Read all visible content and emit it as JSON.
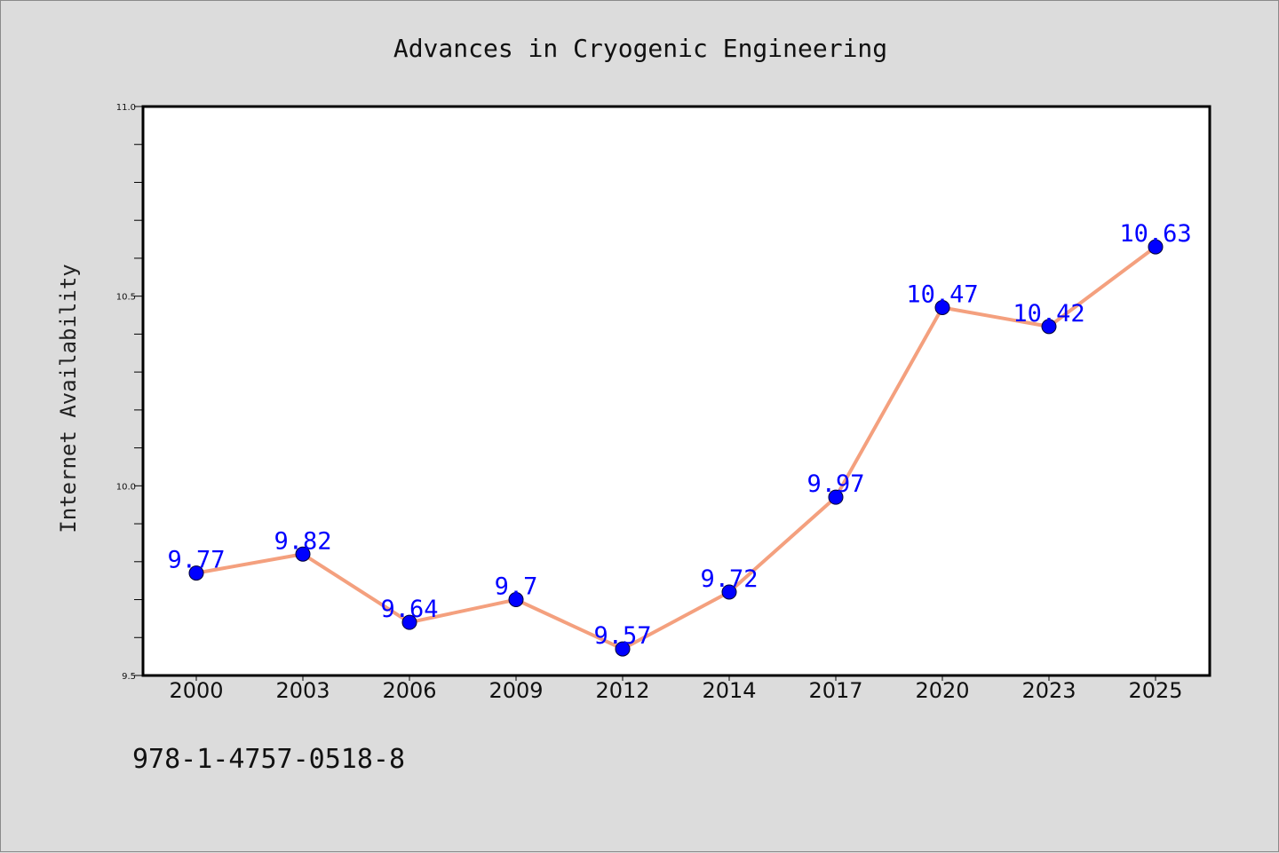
{
  "chart_data": {
    "type": "line",
    "title": "Advances in Cryogenic Engineering",
    "ylabel": "Internet Availability",
    "xlabel": "",
    "categories": [
      "2000",
      "2003",
      "2006",
      "2009",
      "2012",
      "2014",
      "2017",
      "2020",
      "2023",
      "2025"
    ],
    "series": [
      {
        "values": [
          9.77,
          9.82,
          9.64,
          9.7,
          9.57,
          9.72,
          9.97,
          10.47,
          10.42,
          10.63
        ],
        "labels": [
          "9.77",
          "9.82",
          "9.64",
          "9.7",
          "9.57",
          "9.72",
          "9.97",
          "10.47",
          "10.42",
          "10.63"
        ],
        "line_color": "#f4a07e",
        "marker_color": "#0000ff"
      }
    ],
    "ylim": [
      9.5,
      11.0
    ],
    "yticks": [
      "9.5",
      "10.0",
      "10.5",
      "11.0"
    ],
    "grid": false,
    "legend": "none"
  },
  "footer": {
    "isbn": "978-1-4757-0518-8"
  },
  "colors": {
    "background": "#dcdcdc",
    "plot_background": "#ffffff",
    "axis": "#000000"
  }
}
